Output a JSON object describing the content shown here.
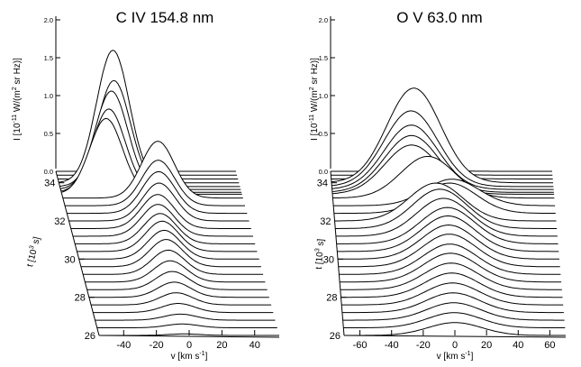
{
  "chart_data": [
    {
      "type": "line",
      "title": "C IV 154.8 nm",
      "xlabel": "v [km s⁻¹]",
      "ylabel": "t [10³ s]",
      "zlabel": "I [10⁻¹¹ W/(m² sr Hz)]",
      "xlim": [
        -55,
        55
      ],
      "ylim": [
        26,
        34.6
      ],
      "zlim": [
        0,
        2.0
      ],
      "x_ticks": [
        "-40",
        "-20",
        "0",
        "20",
        "40"
      ],
      "y_ticks": [
        "26",
        "28",
        "30",
        "32",
        "34"
      ],
      "z_ticks": [
        "0.0",
        "0.5",
        "1.0",
        "1.5",
        "2.0"
      ],
      "profile_shape": "gaussian",
      "series": [
        {
          "t": 26.0,
          "peak": 0.02,
          "v": -3,
          "width": 10
        },
        {
          "t": 26.4,
          "peak": 0.05,
          "v": -3,
          "width": 10
        },
        {
          "t": 26.8,
          "peak": 0.08,
          "v": -3,
          "width": 10
        },
        {
          "t": 27.2,
          "peak": 0.12,
          "v": -3,
          "width": 10
        },
        {
          "t": 27.6,
          "peak": 0.16,
          "v": -3,
          "width": 10
        },
        {
          "t": 28.0,
          "peak": 0.2,
          "v": -3,
          "width": 10
        },
        {
          "t": 28.4,
          "peak": 0.24,
          "v": -3,
          "width": 10
        },
        {
          "t": 28.8,
          "peak": 0.28,
          "v": -3,
          "width": 10
        },
        {
          "t": 29.2,
          "peak": 0.32,
          "v": -3,
          "width": 10
        },
        {
          "t": 29.6,
          "peak": 0.36,
          "v": -3,
          "width": 10
        },
        {
          "t": 30.0,
          "peak": 0.38,
          "v": -3,
          "width": 10
        },
        {
          "t": 30.4,
          "peak": 0.4,
          "v": -3,
          "width": 10
        },
        {
          "t": 30.8,
          "peak": 0.4,
          "v": -3,
          "width": 10
        },
        {
          "t": 31.2,
          "peak": 0.42,
          "v": -3,
          "width": 10
        },
        {
          "t": 31.6,
          "peak": 0.45,
          "v": -2,
          "width": 10
        },
        {
          "t": 32.0,
          "peak": 0.5,
          "v": 0,
          "width": 10
        },
        {
          "t": 32.4,
          "peak": 0.55,
          "v": 1,
          "width": 10
        },
        {
          "t": 32.8,
          "peak": 0.6,
          "v": 2,
          "width": 10
        },
        {
          "t": 33.2,
          "peak": 0.75,
          "v": 3,
          "width": 10
        },
        {
          "t": 33.4,
          "peak": 1.0,
          "v": -28,
          "width": 10
        },
        {
          "t": 33.5,
          "peak": 1.1,
          "v": -26,
          "width": 10
        },
        {
          "t": 33.65,
          "peak": 1.3,
          "v": -24,
          "width": 10
        },
        {
          "t": 33.8,
          "peak": 1.4,
          "v": -22,
          "width": 10
        },
        {
          "t": 34.0,
          "peak": 1.75,
          "v": -22,
          "width": 10
        },
        {
          "t": 34.2,
          "peak": 0.04,
          "v": -5,
          "width": 10
        },
        {
          "t": 34.4,
          "peak": 0.02,
          "v": -5,
          "width": 10
        },
        {
          "t": 34.6,
          "peak": 0.01,
          "v": -5,
          "width": 10
        }
      ]
    },
    {
      "type": "line",
      "title": "O V 63.0 nm",
      "xlabel": "v [km s⁻¹]",
      "ylabel": "t [10³ s]",
      "zlabel": "I [10⁻¹¹ W/(m² sr Hz)]",
      "xlim": [
        -70,
        70
      ],
      "ylim": [
        26,
        34.6
      ],
      "zlim": [
        0,
        2.0
      ],
      "x_ticks": [
        "-60",
        "-40",
        "-20",
        "0",
        "20",
        "40",
        "60"
      ],
      "y_ticks": [
        "26",
        "28",
        "30",
        "32",
        "34"
      ],
      "z_ticks": [
        "0.0",
        "0.5",
        "1.0",
        "1.5",
        "2.0"
      ],
      "profile_shape": "gaussian",
      "series": [
        {
          "t": 26.0,
          "peak": 0.17,
          "v": 0,
          "width": 17
        },
        {
          "t": 26.4,
          "peak": 0.2,
          "v": 0,
          "width": 17
        },
        {
          "t": 26.8,
          "peak": 0.23,
          "v": 0,
          "width": 17
        },
        {
          "t": 27.2,
          "peak": 0.26,
          "v": 0,
          "width": 17
        },
        {
          "t": 27.6,
          "peak": 0.29,
          "v": 0,
          "width": 17
        },
        {
          "t": 28.0,
          "peak": 0.32,
          "v": 0,
          "width": 17
        },
        {
          "t": 28.4,
          "peak": 0.35,
          "v": 0,
          "width": 17
        },
        {
          "t": 28.8,
          "peak": 0.38,
          "v": 0,
          "width": 17
        },
        {
          "t": 29.2,
          "peak": 0.4,
          "v": 0,
          "width": 17
        },
        {
          "t": 29.6,
          "peak": 0.43,
          "v": 0,
          "width": 17
        },
        {
          "t": 30.0,
          "peak": 0.45,
          "v": 0,
          "width": 17
        },
        {
          "t": 30.4,
          "peak": 0.47,
          "v": 0,
          "width": 17
        },
        {
          "t": 30.8,
          "peak": 0.48,
          "v": 0,
          "width": 17
        },
        {
          "t": 31.2,
          "peak": 0.5,
          "v": -2,
          "width": 17
        },
        {
          "t": 31.6,
          "peak": 0.52,
          "v": -4,
          "width": 17
        },
        {
          "t": 32.0,
          "peak": 0.5,
          "v": -6,
          "width": 17
        },
        {
          "t": 32.4,
          "peak": 0.4,
          "v": 3,
          "width": 17
        },
        {
          "t": 32.8,
          "peak": 0.35,
          "v": 5,
          "width": 17
        },
        {
          "t": 33.2,
          "peak": 0.55,
          "v": -10,
          "width": 17
        },
        {
          "t": 33.4,
          "peak": 0.65,
          "v": -20,
          "width": 17
        },
        {
          "t": 33.5,
          "peak": 0.75,
          "v": -20,
          "width": 17
        },
        {
          "t": 33.65,
          "peak": 0.85,
          "v": -20,
          "width": 17
        },
        {
          "t": 33.8,
          "peak": 1.0,
          "v": -20,
          "width": 17
        },
        {
          "t": 34.0,
          "peak": 1.25,
          "v": -18,
          "width": 17
        },
        {
          "t": 34.2,
          "peak": 0.04,
          "v": -10,
          "width": 17
        },
        {
          "t": 34.4,
          "peak": 0.02,
          "v": -10,
          "width": 17
        },
        {
          "t": 34.6,
          "peak": 0.01,
          "v": -10,
          "width": 17
        }
      ]
    }
  ]
}
